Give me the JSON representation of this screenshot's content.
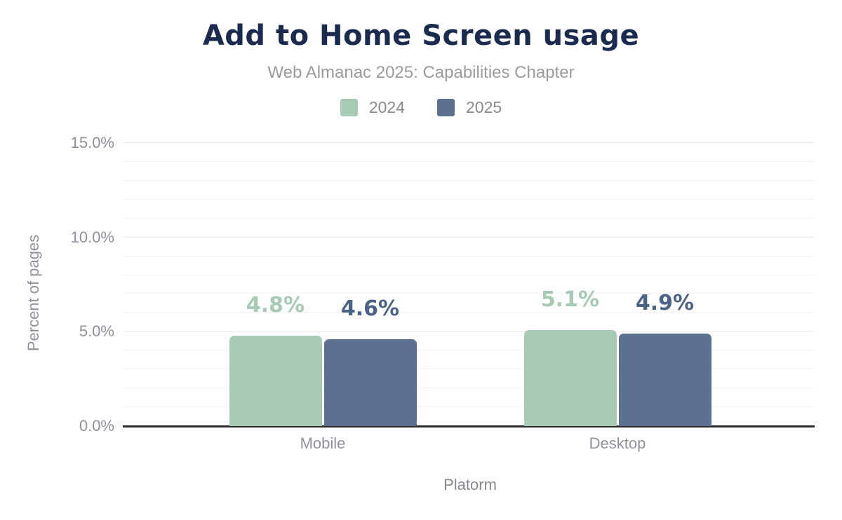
{
  "chart_data": {
    "type": "bar",
    "title": "Add to Home Screen usage",
    "subtitle": "Web Almanac 2025: Capabilities Chapter",
    "categories": [
      "Mobile",
      "Desktop"
    ],
    "series": [
      {
        "name": "2024",
        "color": "#a6cab3",
        "label_color": "#a6cab3",
        "values": [
          4.8,
          5.1
        ],
        "value_labels": [
          "4.8%",
          "5.1%"
        ]
      },
      {
        "name": "2025",
        "color": "#5c7090",
        "label_color": "#4d6386",
        "values": [
          4.6,
          4.9
        ],
        "value_labels": [
          "4.6%",
          "4.9%"
        ]
      }
    ],
    "xlabel": "Platorm",
    "ylabel": "Percent of pages",
    "ylim": [
      0,
      15
    ],
    "y_ticks": [
      {
        "value": 0,
        "label": "0.0%"
      },
      {
        "value": 5,
        "label": "5.0%"
      },
      {
        "value": 10,
        "label": "10.0%"
      },
      {
        "value": 15,
        "label": "15.0%"
      }
    ],
    "minor_grid_step": 1,
    "major_grid_step": 5,
    "grid": true,
    "legend_position": "top-center"
  },
  "style": {
    "background": "#ffffff",
    "title_color": "#1b2b4f",
    "subtitle_color": "#9b9b9b",
    "legend_text_color": "#8a8a8a",
    "axis_text_color": "#8b909a",
    "axis_line_color": "#2b2b2b",
    "major_grid_color": "#e9e9ea",
    "minor_grid_color": "#f4f4f5"
  }
}
